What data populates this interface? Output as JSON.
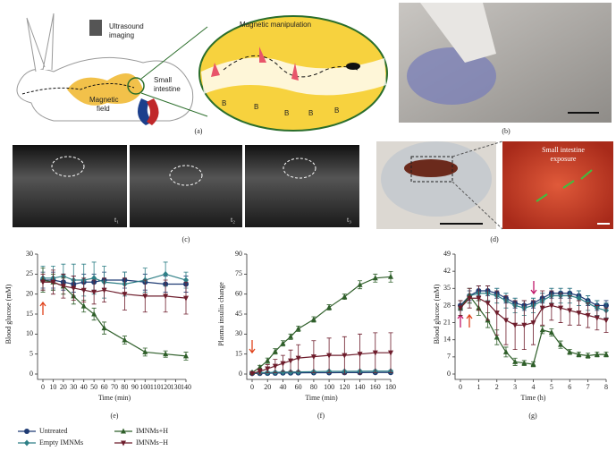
{
  "panel_a": {
    "ultrasound": [
      "Ultrasound",
      "imaging"
    ],
    "manipulation": "Magnetic manipulation",
    "intestine": [
      "Small",
      "intestine"
    ],
    "field": [
      "Magnetic",
      "field"
    ],
    "b_labels": [
      "B",
      "B",
      "B",
      "B",
      "B"
    ]
  },
  "panel_c": {
    "times": [
      "t₁",
      "t₂",
      "t₃"
    ]
  },
  "panel_d": {
    "exposure": [
      "Small intestine",
      "exposure"
    ]
  },
  "panel_labels": [
    "(a)",
    "(b)",
    "(c)",
    "(d)",
    "(e)",
    "(f)",
    "(g)"
  ],
  "chart_data": [
    {
      "type": "line",
      "x_label": "Time (min)",
      "y_label": "Blood glucose (mM)",
      "x": [
        0,
        10,
        20,
        30,
        40,
        50,
        60,
        80,
        100,
        120,
        140
      ],
      "xlim": [
        0,
        140
      ],
      "xticks": [
        0,
        10,
        20,
        30,
        40,
        50,
        60,
        70,
        80,
        90,
        100,
        110,
        120,
        130,
        140
      ],
      "ylim": [
        0,
        30
      ],
      "yticks": [
        0,
        5,
        10,
        15,
        20,
        25,
        30
      ],
      "series": [
        {
          "name": "Untreated",
          "color": "#1f3b73",
          "marker": "circle",
          "values": [
            23.5,
            23.5,
            23,
            22.5,
            23,
            23,
            23.5,
            23.5,
            23,
            22.5,
            22.5
          ],
          "errors": [
            2,
            2,
            2,
            2,
            2,
            2,
            2,
            2,
            2,
            2,
            2
          ]
        },
        {
          "name": "Empty IMNMs",
          "color": "#2e7f86",
          "marker": "diamond",
          "values": [
            24,
            24,
            24.5,
            23.5,
            23.5,
            24,
            23,
            22.5,
            23.5,
            25,
            23.5
          ],
          "errors": [
            3,
            3,
            3,
            4,
            4,
            4,
            4,
            3,
            3,
            3,
            2
          ]
        },
        {
          "name": "IMNMs+H",
          "color": "#2f5f2a",
          "marker": "triangle",
          "values": [
            23.5,
            23,
            22,
            19.5,
            17,
            15,
            11.5,
            8.5,
            5.5,
            5,
            4.5
          ],
          "errors": [
            3,
            2,
            2,
            2,
            1.5,
            1.5,
            1.5,
            1,
            1,
            0.8,
            1
          ]
        },
        {
          "name": "IMNMs−H",
          "color": "#6e1d2c",
          "marker": "triangle-down",
          "values": [
            23,
            23,
            22,
            21.5,
            21,
            20.5,
            21,
            20,
            19.5,
            19.5,
            19
          ],
          "errors": [
            2,
            3,
            3,
            3,
            3,
            3,
            3,
            4,
            4,
            4,
            4
          ]
        }
      ]
    },
    {
      "type": "line",
      "x_label": "Time (min)",
      "y_label": "Plasma insulin change",
      "x": [
        0,
        10,
        20,
        30,
        40,
        50,
        60,
        80,
        100,
        120,
        140,
        160,
        180
      ],
      "xlim": [
        0,
        180
      ],
      "xticks": [
        0,
        20,
        40,
        60,
        80,
        100,
        120,
        140,
        160,
        180
      ],
      "ylim": [
        0,
        90
      ],
      "yticks": [
        0,
        15,
        30,
        45,
        60,
        75,
        90
      ],
      "series": [
        {
          "color": "#1f3b73",
          "marker": "circle",
          "values": [
            0.5,
            0.5,
            0.6,
            0.7,
            0.8,
            0.8,
            0.9,
            1,
            1,
            1.1,
            1.1,
            1.2,
            1.2
          ],
          "errors": [
            0.5,
            0.5,
            0.5,
            0.5,
            0.5,
            0.5,
            0.5,
            0.5,
            0.5,
            0.5,
            0.5,
            0.5,
            0.5
          ]
        },
        {
          "color": "#2e7f86",
          "marker": "diamond",
          "values": [
            1,
            1,
            1.2,
            1.3,
            1.5,
            1.5,
            1.6,
            1.8,
            2,
            2,
            2.1,
            2.2,
            2.2
          ],
          "errors": [
            0.6,
            0.6,
            0.6,
            0.6,
            0.6,
            0.6,
            0.6,
            0.6,
            0.6,
            0.6,
            0.6,
            0.6,
            0.6
          ]
        },
        {
          "color": "#2f5f2a",
          "marker": "triangle",
          "values": [
            1,
            5,
            10,
            17,
            23,
            28,
            34,
            41,
            50,
            58,
            67,
            72,
            73
          ],
          "errors": [
            1,
            1.5,
            2,
            2,
            2,
            2,
            2,
            2,
            2,
            2,
            3,
            3,
            4
          ]
        },
        {
          "color": "#6e1d2c",
          "marker": "triangle-down",
          "values": [
            0.5,
            2,
            4,
            6,
            8,
            10,
            12,
            13,
            14,
            14,
            15,
            16,
            16
          ],
          "errors": [
            0.5,
            2,
            3,
            5,
            6,
            8,
            10,
            12,
            13,
            14,
            15,
            15,
            15
          ]
        }
      ]
    },
    {
      "type": "line",
      "x_label": "Time (h)",
      "y_label": "Blood glucose (mM)",
      "x": [
        0,
        0.5,
        1,
        1.5,
        2,
        2.5,
        3,
        3.5,
        4,
        4.5,
        5,
        5.5,
        6,
        6.5,
        7,
        7.5,
        8
      ],
      "xlim": [
        0,
        8
      ],
      "xticks": [
        0,
        1,
        2,
        3,
        4,
        5,
        6,
        7,
        8
      ],
      "ylim": [
        0,
        49
      ],
      "yticks": [
        0,
        7,
        14,
        21,
        28,
        35,
        42,
        49
      ],
      "series": [
        {
          "color": "#1f3b73",
          "marker": "circle",
          "values": [
            28,
            32,
            34,
            34,
            33,
            31,
            29,
            28,
            29,
            31,
            33,
            33,
            33,
            32,
            30,
            28,
            28
          ],
          "errors": [
            2,
            2,
            2,
            2,
            2,
            2,
            2,
            2,
            2,
            2,
            2,
            2,
            2,
            2,
            2,
            2,
            2
          ]
        },
        {
          "color": "#2e7f86",
          "marker": "diamond",
          "values": [
            27,
            32,
            33,
            33,
            32,
            30,
            28,
            27,
            28,
            30,
            32,
            32,
            32,
            31,
            29,
            27,
            26
          ],
          "errors": [
            3,
            3,
            3,
            3,
            3,
            3,
            3,
            3,
            3,
            3,
            3,
            3,
            3,
            3,
            3,
            3,
            3
          ]
        },
        {
          "color": "#2f5f2a",
          "marker": "triangle",
          "values": [
            27,
            32,
            27,
            22,
            15,
            9,
            5,
            4.5,
            4,
            18,
            17,
            12,
            9,
            8,
            7.5,
            8,
            8
          ],
          "errors": [
            3,
            3,
            3,
            3,
            3,
            2,
            1.5,
            1,
            1,
            1.5,
            1.5,
            1.5,
            1,
            1,
            1,
            1,
            1
          ]
        },
        {
          "color": "#6e1d2c",
          "marker": "triangle-down",
          "values": [
            27,
            31,
            31,
            29,
            25,
            22,
            20,
            20,
            21,
            27,
            28,
            27,
            26,
            25,
            24,
            23,
            22
          ],
          "errors": [
            3,
            4,
            5,
            7,
            9,
            10,
            10,
            10,
            9,
            7,
            6,
            6,
            6,
            5,
            5,
            5,
            5
          ]
        }
      ]
    }
  ]
}
